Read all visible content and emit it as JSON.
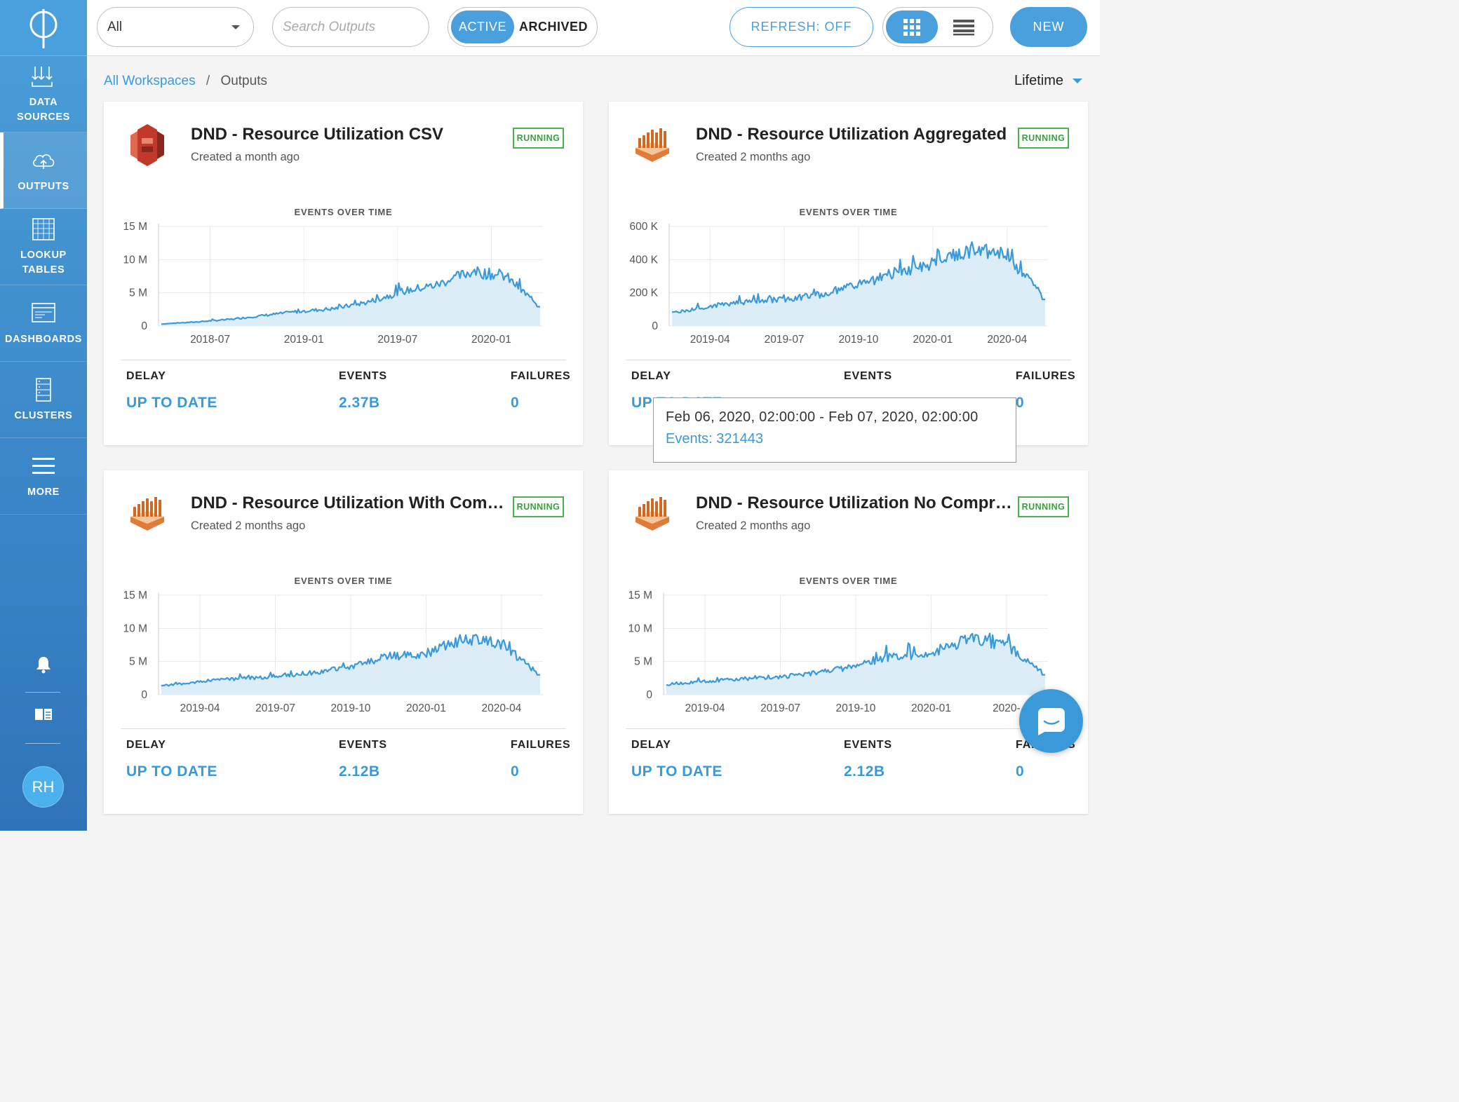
{
  "colors": {
    "accent": "#3a9ad9",
    "sidebar": "#3a86c8",
    "running": "#3c9e41",
    "area_fill": "#dcedf8"
  },
  "sidebar": {
    "logo_icon": "phi-logo-icon",
    "items": [
      {
        "label": "DATA\nSOURCES",
        "icon": "data-sources-icon",
        "active": false
      },
      {
        "label": "OUTPUTS",
        "icon": "cloud-upload-icon",
        "active": true
      },
      {
        "label": "LOOKUP\nTABLES",
        "icon": "table-icon",
        "active": false
      },
      {
        "label": "DASHBOARDS",
        "icon": "dashboard-icon",
        "active": false
      },
      {
        "label": "CLUSTERS",
        "icon": "server-icon",
        "active": false
      },
      {
        "label": "MORE",
        "icon": "menu-icon",
        "active": false
      }
    ],
    "avatar": "RH"
  },
  "toolbar": {
    "filter_value": "All",
    "search_placeholder": "Search Outputs",
    "active_label": "ACTIVE",
    "archived_label": "ARCHIVED",
    "refresh_label": "REFRESH: OFF",
    "new_label": "NEW"
  },
  "breadcrumb": {
    "root": "All Workspaces",
    "separator": "/",
    "current": "Outputs"
  },
  "time_range": "Lifetime",
  "stat_labels": {
    "delay": "DELAY",
    "events": "EVENTS",
    "failures": "FAILURES"
  },
  "cards": [
    {
      "title": "DND - Resource Utilization CSV",
      "subtitle": "Created a month ago",
      "status": "RUNNING",
      "icon": "s3-bucket-icon",
      "delay": "UP TO DATE",
      "events": "2.37B",
      "failures": "0",
      "chart_title": "EVENTS OVER TIME"
    },
    {
      "title": "DND - Resource Utilization Aggregated",
      "subtitle": "Created 2 months ago",
      "status": "RUNNING",
      "icon": "redshift-icon",
      "delay": "UP TO DATE",
      "events": "",
      "failures": "0",
      "chart_title": "EVENTS OVER TIME"
    },
    {
      "title": "DND - Resource Utilization With Compression",
      "subtitle": "Created 2 months ago",
      "status": "RUNNING",
      "icon": "redshift-icon",
      "delay": "UP TO DATE",
      "events": "2.12B",
      "failures": "0",
      "chart_title": "EVENTS OVER TIME"
    },
    {
      "title": "DND - Resource Utilization No Compression",
      "subtitle": "Created 2 months ago",
      "status": "RUNNING",
      "icon": "redshift-icon",
      "delay": "UP TO DATE",
      "events": "2.12B",
      "failures": "0",
      "chart_title": "EVENTS OVER TIME"
    }
  ],
  "tooltip": {
    "range": "Feb 06, 2020, 02:00:00 - Feb 07, 2020, 02:00:00",
    "events": "Events: 321443"
  },
  "chat_icon": "chat-bubble-icon",
  "chart_data": [
    {
      "type": "area",
      "title": "EVENTS OVER TIME",
      "x": [
        "2018-04",
        "2018-07",
        "2018-10",
        "2019-01",
        "2019-04",
        "2019-07",
        "2019-10",
        "2020-01",
        "2020-02",
        "2020-03",
        "2020-04",
        "2020-05"
      ],
      "y_ticks": [
        "0",
        "5 M",
        "10 M",
        "15 M"
      ],
      "x_ticks": [
        "2018-07",
        "2019-01",
        "2019-07",
        "2020-01"
      ],
      "series": [
        {
          "values": [
            0.3,
            0.6,
            1.0,
            1.6,
            2.2,
            2.6,
            3.6,
            5.2,
            6.2,
            8.2,
            7.5,
            2.9
          ]
        }
      ],
      "ylim": [
        0,
        15
      ]
    },
    {
      "type": "area",
      "title": "EVENTS OVER TIME",
      "x": [
        "2019-02",
        "2019-04",
        "2019-06",
        "2019-08",
        "2019-10",
        "2019-12",
        "2020-01",
        "2020-02",
        "2020-03",
        "2020-04",
        "2020-05"
      ],
      "y_ticks": [
        "0",
        "200 K",
        "400 K",
        "600 K"
      ],
      "x_ticks": [
        "2019-04",
        "2019-07",
        "2019-10",
        "2020-01",
        "2020-04"
      ],
      "series": [
        {
          "values": [
            75,
            120,
            145,
            160,
            190,
            250,
            320,
            380,
            460,
            420,
            160
          ]
        }
      ],
      "ylim": [
        0,
        600
      ]
    },
    {
      "type": "area",
      "title": "EVENTS OVER TIME",
      "x": [
        "2019-02",
        "2019-04",
        "2019-06",
        "2019-08",
        "2019-10",
        "2019-12",
        "2020-01",
        "2020-02",
        "2020-03",
        "2020-04",
        "2020-05"
      ],
      "y_ticks": [
        "0",
        "5 M",
        "10 M",
        "15 M"
      ],
      "x_ticks": [
        "2019-04",
        "2019-07",
        "2019-10",
        "2020-01",
        "2020-04"
      ],
      "series": [
        {
          "values": [
            1.3,
            2.0,
            2.4,
            2.8,
            3.3,
            4.2,
            5.8,
            6.2,
            8.5,
            7.6,
            3.0
          ]
        }
      ],
      "ylim": [
        0,
        15
      ]
    },
    {
      "type": "area",
      "title": "EVENTS OVER TIME",
      "x": [
        "2019-02",
        "2019-04",
        "2019-06",
        "2019-08",
        "2019-10",
        "2019-12",
        "2020-01",
        "2020-02",
        "2020-03",
        "2020-04",
        "2020-05"
      ],
      "y_ticks": [
        "0",
        "5 M",
        "10 M",
        "15 M"
      ],
      "x_ticks": [
        "2019-04",
        "2019-07",
        "2019-10",
        "2020-01",
        "2020-04"
      ],
      "x_tick_labels_visible": [
        "2019-04",
        "2019-07",
        "2019-10",
        "2020-01",
        "2020-"
      ],
      "series": [
        {
          "values": [
            1.5,
            2.0,
            2.4,
            2.7,
            3.3,
            4.3,
            5.9,
            6.0,
            8.6,
            7.4,
            3.0
          ]
        }
      ],
      "ylim": [
        0,
        15
      ]
    }
  ]
}
